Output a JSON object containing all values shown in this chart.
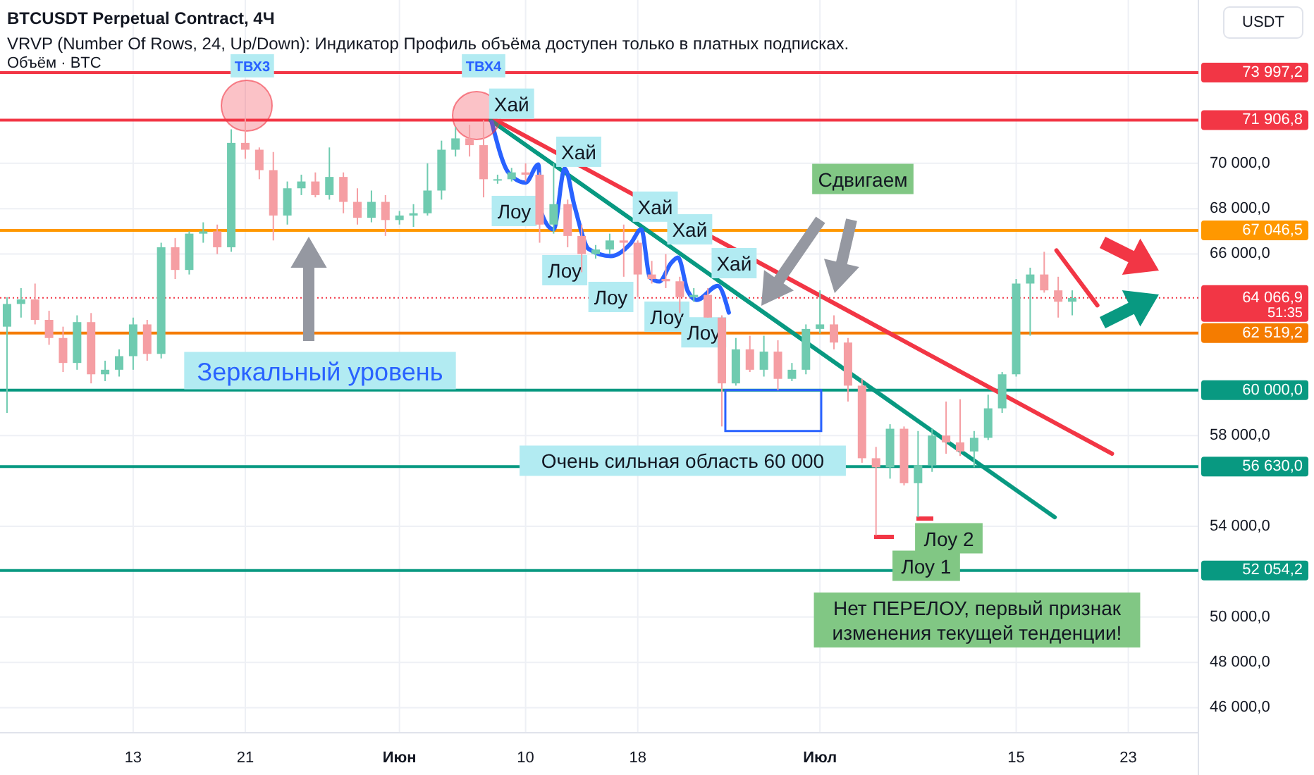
{
  "chart_data": {
    "type": "candlestick",
    "title": "BTCUSDT Perpetual Contract, 4Ч",
    "subtitle": "VRVP (Number Of Rows, 24, Up/Down): Индикатор Профиль объёма доступен только в платных подписках.",
    "x": [
      "--05-04",
      "--05-05",
      "--05-06",
      "--05-07",
      "--05-08",
      "--05-09",
      "--05-10",
      "--05-11",
      "--05-12",
      "--05-13",
      "--05-14",
      "--05-15",
      "--05-16",
      "--05-17",
      "--05-18",
      "--05-19",
      "--05-20",
      "--05-21",
      "--05-22",
      "--05-23",
      "--05-24",
      "--05-25",
      "--05-26",
      "--05-27",
      "--05-28",
      "--05-29",
      "--05-30",
      "--05-31",
      "--06-01",
      "--06-02",
      "--06-03",
      "--06-04",
      "--06-05",
      "--06-06",
      "--06-07",
      "--06-08",
      "--06-09",
      "--06-10",
      "--06-11",
      "--06-12",
      "--06-13",
      "--06-14",
      "--06-15",
      "--06-16",
      "--06-17",
      "--06-18",
      "--06-19",
      "--06-20",
      "--06-21",
      "--06-22",
      "--06-23",
      "--06-24",
      "--06-25",
      "--06-26",
      "--06-27",
      "--06-28",
      "--06-29",
      "--06-30",
      "--07-01",
      "--07-02",
      "--07-03",
      "--07-04",
      "--07-05",
      "--07-06",
      "--07-07",
      "--07-08",
      "--07-09",
      "--07-10",
      "--07-11",
      "--07-12",
      "--07-13",
      "--07-14",
      "--07-15",
      "--07-16",
      "--07-17",
      "--07-18",
      "--07-19"
    ],
    "ohlc": [
      [
        62800,
        64100,
        59000,
        63800
      ],
      [
        63800,
        64500,
        63200,
        64000
      ],
      [
        64000,
        64700,
        62900,
        63100
      ],
      [
        63100,
        63500,
        62000,
        62300
      ],
      [
        62300,
        62800,
        60800,
        61200
      ],
      [
        61200,
        63300,
        60900,
        63000
      ],
      [
        63000,
        63400,
        60300,
        60700
      ],
      [
        60700,
        61300,
        60400,
        60900
      ],
      [
        60900,
        61800,
        60600,
        61500
      ],
      [
        61500,
        63200,
        60900,
        62900
      ],
      [
        62900,
        63100,
        61300,
        61600
      ],
      [
        61600,
        66500,
        61400,
        66300
      ],
      [
        66300,
        66700,
        64900,
        65300
      ],
      [
        65300,
        67000,
        65100,
        66900
      ],
      [
        66900,
        67400,
        66500,
        67000
      ],
      [
        67000,
        67300,
        66000,
        66300
      ],
      [
        66300,
        71500,
        66100,
        70900
      ],
      [
        70900,
        72000,
        70200,
        70600
      ],
      [
        70600,
        70700,
        69300,
        69700
      ],
      [
        69700,
        70500,
        66600,
        67700
      ],
      [
        67700,
        69200,
        67300,
        68900
      ],
      [
        68900,
        69500,
        68600,
        69200
      ],
      [
        69200,
        69600,
        68500,
        68600
      ],
      [
        68600,
        70700,
        68400,
        69400
      ],
      [
        69400,
        69600,
        67800,
        68300
      ],
      [
        68300,
        68900,
        67300,
        67600
      ],
      [
        67600,
        68800,
        67400,
        68300
      ],
      [
        68300,
        68600,
        66800,
        67500
      ],
      [
        67500,
        67900,
        67300,
        67700
      ],
      [
        67700,
        68200,
        67200,
        67800
      ],
      [
        67800,
        70000,
        67700,
        68800
      ],
      [
        68800,
        71000,
        68400,
        70600
      ],
      [
        70600,
        71600,
        70300,
        71100
      ],
      [
        71100,
        71700,
        70300,
        70800
      ],
      [
        70800,
        71900,
        68500,
        69300
      ],
      [
        69300,
        69500,
        69100,
        69300
      ],
      [
        69300,
        69800,
        69200,
        69600
      ],
      [
        69600,
        70000,
        69200,
        69500
      ],
      [
        69500,
        69600,
        66500,
        67300
      ],
      [
        67300,
        70000,
        66900,
        68200
      ],
      [
        68200,
        68400,
        66300,
        66800
      ],
      [
        66800,
        67300,
        65200,
        66000
      ],
      [
        66000,
        66400,
        65800,
        66200
      ],
      [
        66200,
        66900,
        66000,
        66600
      ],
      [
        66600,
        67300,
        65000,
        66500
      ],
      [
        66500,
        66600,
        64100,
        65100
      ],
      [
        65100,
        65700,
        64700,
        64900
      ],
      [
        64900,
        66000,
        64500,
        64800
      ],
      [
        64800,
        65000,
        63400,
        64100
      ],
      [
        64100,
        64500,
        63900,
        64200
      ],
      [
        64200,
        64500,
        63200,
        63200
      ],
      [
        63200,
        63300,
        58400,
        60300
      ],
      [
        60300,
        62300,
        60200,
        61800
      ],
      [
        61800,
        62400,
        60800,
        60900
      ],
      [
        60900,
        62400,
        60600,
        61700
      ],
      [
        61700,
        62200,
        60000,
        60500
      ],
      [
        60500,
        61200,
        60400,
        60900
      ],
      [
        60900,
        62900,
        60700,
        62700
      ],
      [
        62700,
        64400,
        62500,
        62900
      ],
      [
        62900,
        63300,
        61800,
        62100
      ],
      [
        62100,
        62300,
        59500,
        60200
      ],
      [
        60200,
        60500,
        56800,
        57000
      ],
      [
        57000,
        57500,
        53600,
        56600
      ],
      [
        56600,
        58500,
        56100,
        58300
      ],
      [
        58300,
        58400,
        55800,
        55900
      ],
      [
        55900,
        58200,
        54400,
        56700
      ],
      [
        56700,
        58300,
        56400,
        58000
      ],
      [
        58000,
        59500,
        57200,
        57700
      ],
      [
        57700,
        59600,
        57100,
        57300
      ],
      [
        57300,
        58200,
        56600,
        57900
      ],
      [
        57900,
        59800,
        57800,
        59200
      ],
      [
        59200,
        60800,
        59000,
        60700
      ],
      [
        60700,
        64900,
        60600,
        64700
      ],
      [
        64700,
        65400,
        62400,
        65100
      ],
      [
        65100,
        66100,
        64300,
        64400
      ],
      [
        64400,
        65000,
        63200,
        63900
      ],
      [
        63900,
        64400,
        63300,
        64066.9
      ]
    ],
    "colors": [
      "#6fcbb0",
      "#6fcbb0",
      "#f59ea3",
      "#f59ea3",
      "#f59ea3",
      "#6fcbb0",
      "#f59ea3",
      "#6fcbb0",
      "#6fcbb0",
      "#6fcbb0",
      "#f59ea3",
      "#6fcbb0",
      "#f59ea3",
      "#6fcbb0",
      "#6fcbb0",
      "#f59ea3",
      "#6fcbb0",
      "#f59ea3",
      "#f59ea3",
      "#f59ea3",
      "#6fcbb0",
      "#6fcbb0",
      "#f59ea3",
      "#6fcbb0",
      "#f59ea3",
      "#f59ea3",
      "#6fcbb0",
      "#f59ea3",
      "#6fcbb0",
      "#6fcbb0",
      "#6fcbb0",
      "#6fcbb0",
      "#6fcbb0",
      "#f59ea3",
      "#f59ea3",
      "#6fcbb0",
      "#6fcbb0",
      "#f59ea3",
      "#f59ea3",
      "#6fcbb0",
      "#f59ea3",
      "#f59ea3",
      "#6fcbb0",
      "#6fcbb0",
      "#f59ea3",
      "#f59ea3",
      "#f59ea3",
      "#f59ea3",
      "#f59ea3",
      "#6fcbb0",
      "#f59ea3",
      "#f59ea3",
      "#6fcbb0",
      "#f59ea3",
      "#6fcbb0",
      "#f59ea3",
      "#6fcbb0",
      "#6fcbb0",
      "#6fcbb0",
      "#f59ea3",
      "#f59ea3",
      "#f59ea3",
      "#f59ea3",
      "#6fcbb0",
      "#f59ea3",
      "#6fcbb0",
      "#6fcbb0",
      "#f59ea3",
      "#f59ea3",
      "#6fcbb0",
      "#6fcbb0",
      "#6fcbb0",
      "#6fcbb0",
      "#6fcbb0",
      "#f59ea3",
      "#f59ea3",
      "#6fcbb0"
    ],
    "series": [
      {
        "type": "line",
        "color": "#f23645",
        "x": [
          "--06-07T18:00",
          "--07-21T20:00"
        ],
        "values": [
          71950,
          57200
        ]
      },
      {
        "type": "line",
        "color": "#089981",
        "x": [
          "--06-07T12:00",
          "--07-17T18:00"
        ],
        "values": [
          71900,
          54400
        ]
      },
      {
        "type": "line",
        "color": "#f23645",
        "x": [
          "--07-17T21:00",
          "--07-20T19:00"
        ],
        "values": [
          66160,
          63740
        ]
      },
      {
        "type": "line",
        "color": "#2962ff",
        "x": [
          "--06-07T14:00",
          "--06-08T19:00",
          "--06-10T00:00",
          "--06-10T22:00",
          "--06-11T02:00",
          "--06-12T00:00",
          "--06-12T19:00",
          "--06-13T12:00",
          "--06-14T12:00",
          "--06-16T02:00",
          "--06-17T12:00",
          "--06-18T06:00",
          "--06-18T21:00",
          "--06-19T13:00",
          "--06-20T09:00",
          "--06-20T21:00",
          "--06-21T14:00",
          "--06-22T05:00",
          "--06-23T17:00",
          "--06-24T12:00"
        ],
        "values": [
          71820,
          69580,
          69150,
          69950,
          67900,
          67090,
          69770,
          68090,
          66220,
          65910,
          66470,
          67090,
          64970,
          64790,
          65600,
          65850,
          64350,
          63980,
          64600,
          63420
        ]
      }
    ],
    "xlim": [
      "--05-03T12:00",
      "--07-28"
    ],
    "xticks": [
      {
        "value": "--05-13",
        "label": "13"
      },
      {
        "value": "--05-21",
        "label": "21"
      },
      {
        "value": "--06-01",
        "label": "Июн"
      },
      {
        "value": "--06-10",
        "label": "10"
      },
      {
        "value": "--06-18",
        "label": "18"
      },
      {
        "value": "--07-01",
        "label": "Июл"
      },
      {
        "value": "--07-15",
        "label": "15"
      },
      {
        "value": "--07-23",
        "label": "23"
      }
    ],
    "ylim": [
      44900,
      77200
    ],
    "yticks": [
      {
        "value": 46000,
        "label": "46 000,0"
      },
      {
        "value": 48000,
        "label": "48 000,0"
      },
      {
        "value": 50000,
        "label": "50 000,0"
      },
      {
        "value": 54000,
        "label": "54 000,0"
      },
      {
        "value": 58000,
        "label": "58 000,0"
      },
      {
        "value": 66000,
        "label": "66 000,0"
      },
      {
        "value": 68000,
        "label": "68 000,0"
      },
      {
        "value": 70000,
        "label": "70 000,0"
      }
    ],
    "grid": true,
    "ref_lines": [
      {
        "axis": "y",
        "value": 73997.2,
        "label": "73 997,2",
        "color": "#f23645"
      },
      {
        "axis": "y",
        "value": 71906.8,
        "label": "71 906,8",
        "color": "#f23645"
      },
      {
        "axis": "y",
        "value": 67046.5,
        "label": "67 046,5",
        "color": "#ff9800"
      },
      {
        "axis": "y",
        "value": 62519.2,
        "label": "62 519,2",
        "color": "#f57c00"
      },
      {
        "axis": "y",
        "value": 60000,
        "label": "60 000,0",
        "color": "#089981"
      },
      {
        "axis": "y",
        "value": 56630,
        "label": "56 630,0",
        "color": "#089981"
      },
      {
        "axis": "y",
        "value": 52054.2,
        "label": "52 054,2",
        "color": "#089981"
      },
      {
        "axis": "y",
        "value": 64066.9,
        "label": "64 066,9",
        "color": "#f23645",
        "line_style": "dotted"
      }
    ],
    "annotations": [
      "Объём · BTC",
      "USDT",
      "51:35",
      "Сдвигаем",
      "Зеркальный уровень",
      "Лоу 2",
      "Нет ПЕРЕЛОУ, первый признак\nизменения текущей тенденции!",
      {
        "text": "Хай",
        "x": "--06-09T00:00",
        "y": 72630
      },
      {
        "text": "Хай",
        "x": "--06-13T19:00",
        "y": 70510
      },
      {
        "text": "Хай",
        "x": "--06-19T06:00",
        "y": 68090
      },
      {
        "text": "Хай",
        "x": "--06-21T17:00",
        "y": 67090
      },
      {
        "text": "Хай",
        "x": "--06-24T21:00",
        "y": 65600
      },
      {
        "text": "Лоу",
        "x": "--06-09T04:30",
        "y": 67900
      },
      {
        "text": "Лоу",
        "x": "--06-12T19:00",
        "y": 65290
      },
      {
        "text": "Лоу",
        "x": "--06-16T02:00",
        "y": 64110
      },
      {
        "text": "Лоу",
        "x": "--06-20T02:00",
        "y": 63240
      },
      {
        "text": "Лоу",
        "x": "--06-22T17:00",
        "y": 62550
      },
      {
        "text": "Очень сильная область 60 000",
        "x": "--06-21T05:00",
        "y": 56890
      },
      {
        "text": "Лоу 1",
        "x": "--07-08T14:00",
        "y": 52260
      },
      {
        "text": "ТВХ3",
        "x": "--05-21T12:00",
        "y": 74300
      },
      {
        "text": "ТВХ4",
        "x": "--06-07T00:00",
        "y": 74300
      }
    ]
  }
}
